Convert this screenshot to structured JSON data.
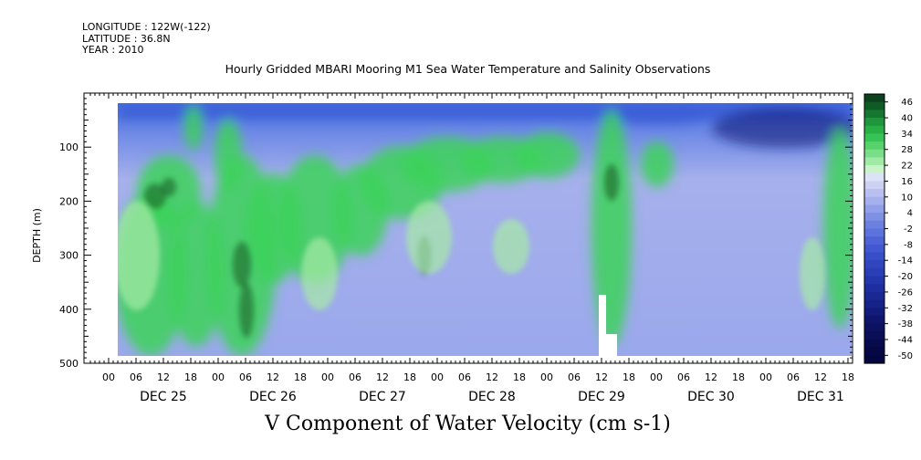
{
  "header": {
    "longitude": "LONGITUDE : 122W(-122)",
    "latitude": "LATITUDE : 36.8N",
    "year": "YEAR : 2010"
  },
  "chart_data": {
    "type": "heatmap",
    "title": "Hourly Gridded MBARI Mooring M1 Sea Water Temperature and Salinity Observations",
    "xlabel": "",
    "ylabel": "DEPTH (m)",
    "bottom_title": "V Component of Water Velocity (cm s-1)",
    "y_range": [
      500,
      0
    ],
    "y_ticks": [
      100,
      200,
      300,
      400,
      500
    ],
    "x_hour_ticks": [
      "00",
      "06",
      "12",
      "18",
      "00",
      "06",
      "12",
      "18",
      "00",
      "06",
      "12",
      "18",
      "00",
      "06",
      "12",
      "18",
      "00",
      "06",
      "12",
      "18",
      "00",
      "06",
      "12",
      "18",
      "00",
      "06",
      "12",
      "18"
    ],
    "x_day_labels": [
      "DEC 25",
      "DEC 26",
      "DEC 27",
      "DEC 28",
      "DEC 29",
      "DEC 30",
      "DEC 31"
    ],
    "colorbar_levels": [
      46,
      40,
      34,
      28,
      22,
      16,
      10,
      4,
      -2,
      -8,
      -14,
      -20,
      -26,
      -32,
      -38,
      -44,
      -50
    ],
    "colors": {
      "strong_negative": "#101a7a",
      "negative": "#3a5cd6",
      "weak_negative": "#9aa6ea",
      "near_zero": "#cfd4f4",
      "weak_positive": "#a6eaa6",
      "positive": "#3cd25a",
      "strong_positive": "#0d5a22"
    }
  }
}
